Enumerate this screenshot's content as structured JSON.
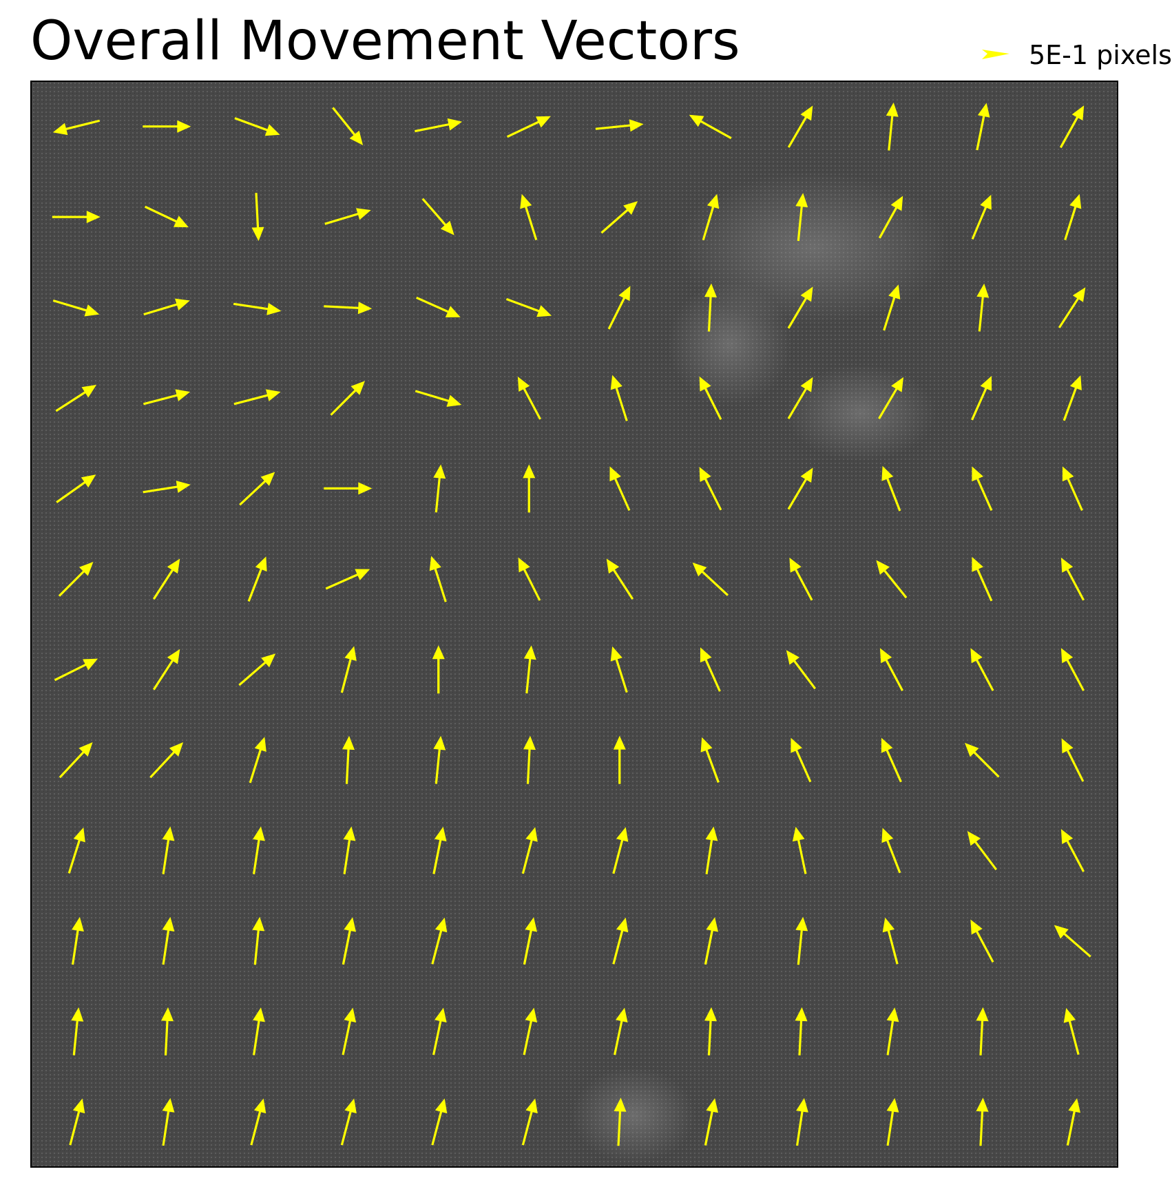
{
  "chart_data": {
    "type": "quiver",
    "title": "Overall Movement Vectors",
    "legend": {
      "label": "5E-1 pixels",
      "value": 0.5,
      "placement": "top-right"
    },
    "colors": {
      "arrow": "#ffff00",
      "background": "#4a4a4a",
      "frame": "#000000"
    },
    "grid": false,
    "rows": 12,
    "cols": 12,
    "vectors": [
      [
        [
          -1.0,
          -0.25
        ],
        [
          1.0,
          0.0
        ],
        [
          0.95,
          -0.35
        ],
        [
          0.6,
          -0.75
        ],
        [
          1.0,
          0.2
        ],
        [
          0.95,
          0.45
        ],
        [
          1.0,
          0.1
        ],
        [
          -0.9,
          0.5
        ],
        [
          0.55,
          0.95
        ],
        [
          0.1,
          1.0
        ],
        [
          0.2,
          1.0
        ],
        [
          0.5,
          0.9
        ]
      ],
      [
        [
          1.0,
          0.0
        ],
        [
          0.95,
          -0.45
        ],
        [
          0.05,
          -1.0
        ],
        [
          1.0,
          0.3
        ],
        [
          0.65,
          -0.75
        ],
        [
          -0.3,
          0.95
        ],
        [
          0.8,
          0.7
        ],
        [
          0.3,
          1.0
        ],
        [
          0.1,
          1.0
        ],
        [
          0.5,
          0.9
        ],
        [
          0.4,
          0.95
        ],
        [
          0.3,
          0.95
        ]
      ],
      [
        [
          1.0,
          -0.3
        ],
        [
          1.0,
          0.3
        ],
        [
          1.0,
          -0.15
        ],
        [
          1.0,
          -0.05
        ],
        [
          0.9,
          -0.4
        ],
        [
          0.95,
          -0.35
        ],
        [
          0.45,
          0.9
        ],
        [
          0.05,
          1.0
        ],
        [
          0.5,
          0.85
        ],
        [
          0.3,
          0.95
        ],
        [
          0.1,
          1.0
        ],
        [
          0.55,
          0.85
        ]
      ],
      [
        [
          0.85,
          0.55
        ],
        [
          0.95,
          0.25
        ],
        [
          0.95,
          0.25
        ],
        [
          0.7,
          0.7
        ],
        [
          1.0,
          -0.3
        ],
        [
          -0.45,
          0.85
        ],
        [
          -0.3,
          0.95
        ],
        [
          -0.45,
          0.9
        ],
        [
          0.5,
          0.85
        ],
        [
          0.5,
          0.85
        ],
        [
          0.4,
          0.9
        ],
        [
          0.35,
          0.95
        ]
      ],
      [
        [
          0.85,
          0.6
        ],
        [
          0.95,
          0.15
        ],
        [
          0.75,
          0.7
        ],
        [
          1.0,
          0.0
        ],
        [
          0.1,
          1.0
        ],
        [
          0.0,
          1.0
        ],
        [
          -0.4,
          0.9
        ],
        [
          -0.45,
          0.9
        ],
        [
          0.5,
          0.85
        ],
        [
          -0.35,
          0.9
        ],
        [
          -0.4,
          0.9
        ],
        [
          -0.4,
          0.9
        ]
      ],
      [
        [
          0.75,
          0.75
        ],
        [
          0.55,
          0.85
        ],
        [
          0.35,
          0.9
        ],
        [
          0.9,
          0.4
        ],
        [
          -0.3,
          0.95
        ],
        [
          -0.45,
          0.9
        ],
        [
          -0.55,
          0.85
        ],
        [
          -0.7,
          0.65
        ],
        [
          -0.45,
          0.85
        ],
        [
          -0.6,
          0.75
        ],
        [
          -0.4,
          0.9
        ],
        [
          -0.45,
          0.85
        ]
      ],
      [
        [
          0.9,
          0.45
        ],
        [
          0.55,
          0.85
        ],
        [
          0.75,
          0.65
        ],
        [
          0.25,
          0.95
        ],
        [
          0.0,
          1.0
        ],
        [
          0.1,
          1.0
        ],
        [
          -0.3,
          0.95
        ],
        [
          -0.4,
          0.9
        ],
        [
          -0.6,
          0.8
        ],
        [
          -0.45,
          0.85
        ],
        [
          -0.45,
          0.85
        ],
        [
          -0.45,
          0.85
        ]
      ],
      [
        [
          0.7,
          0.75
        ],
        [
          0.7,
          0.75
        ],
        [
          0.3,
          0.95
        ],
        [
          0.05,
          1.0
        ],
        [
          0.1,
          1.0
        ],
        [
          0.05,
          1.0
        ],
        [
          0.0,
          1.0
        ],
        [
          -0.35,
          0.95
        ],
        [
          -0.4,
          0.9
        ],
        [
          -0.4,
          0.9
        ],
        [
          -0.7,
          0.7
        ],
        [
          -0.45,
          0.9
        ]
      ],
      [
        [
          0.3,
          0.95
        ],
        [
          0.15,
          1.0
        ],
        [
          0.15,
          1.0
        ],
        [
          0.15,
          1.0
        ],
        [
          0.2,
          1.0
        ],
        [
          0.25,
          0.95
        ],
        [
          0.25,
          0.95
        ],
        [
          0.15,
          1.0
        ],
        [
          -0.2,
          0.95
        ],
        [
          -0.35,
          0.9
        ],
        [
          -0.6,
          0.8
        ],
        [
          -0.45,
          0.85
        ]
      ],
      [
        [
          0.15,
          1.0
        ],
        [
          0.15,
          1.0
        ],
        [
          0.1,
          1.0
        ],
        [
          0.2,
          1.0
        ],
        [
          0.25,
          0.95
        ],
        [
          0.2,
          1.0
        ],
        [
          0.25,
          0.95
        ],
        [
          0.2,
          1.0
        ],
        [
          0.1,
          1.0
        ],
        [
          -0.25,
          0.95
        ],
        [
          -0.45,
          0.85
        ],
        [
          -0.75,
          0.65
        ]
      ],
      [
        [
          0.1,
          1.0
        ],
        [
          0.05,
          1.0
        ],
        [
          0.15,
          1.0
        ],
        [
          0.2,
          0.95
        ],
        [
          0.2,
          0.95
        ],
        [
          0.2,
          0.95
        ],
        [
          0.2,
          0.95
        ],
        [
          0.05,
          1.0
        ],
        [
          0.05,
          1.0
        ],
        [
          0.15,
          1.0
        ],
        [
          0.05,
          1.0
        ],
        [
          -0.25,
          0.95
        ]
      ],
      [
        [
          0.25,
          0.95
        ],
        [
          0.15,
          1.0
        ],
        [
          0.25,
          0.95
        ],
        [
          0.25,
          0.95
        ],
        [
          0.25,
          0.95
        ],
        [
          0.25,
          0.95
        ],
        [
          0.05,
          1.0
        ],
        [
          0.2,
          1.0
        ],
        [
          0.15,
          1.0
        ],
        [
          0.15,
          1.0
        ],
        [
          0.05,
          1.0
        ],
        [
          0.2,
          1.0
        ]
      ]
    ]
  }
}
